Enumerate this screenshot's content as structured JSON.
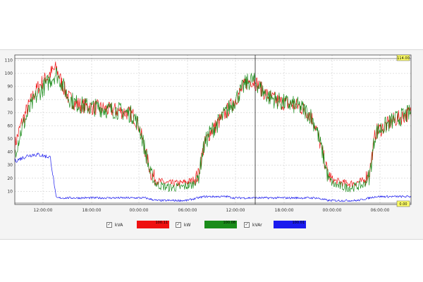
{
  "chart_data": {
    "type": "line",
    "title": "",
    "xlabel": "",
    "ylabel": "",
    "ylim": [
      0,
      114
    ],
    "y_ticks": [
      10,
      20,
      30,
      40,
      50,
      60,
      70,
      80,
      90,
      100,
      110
    ],
    "x_ticks": [
      "12:00:00",
      "18:00:00",
      "00:00:00",
      "06:00:00",
      "12:00:00",
      "18:00:00",
      "00:00:00",
      "06:00:00"
    ],
    "grid": true,
    "cursor_readout_top": "114.00",
    "cursor_readout_bottom": "0.00",
    "series": [
      {
        "name": "kVA",
        "color": "#ee1111",
        "swatch_value": "100.11",
        "values": [
          45,
          60,
          72,
          82,
          90,
          95,
          100,
          104,
          92,
          82,
          78,
          76,
          75,
          74,
          74,
          73,
          72,
          72,
          71,
          70,
          68,
          60,
          42,
          24,
          18,
          17,
          16,
          16,
          16,
          17,
          18,
          22,
          45,
          55,
          60,
          66,
          72,
          78,
          85,
          92,
          95,
          92,
          86,
          82,
          80,
          78,
          77,
          76,
          75,
          72,
          68,
          58,
          40,
          22,
          18,
          17,
          16,
          16,
          17,
          18,
          25,
          55,
          58,
          61,
          64,
          66,
          68,
          70
        ]
      },
      {
        "name": "kW",
        "color": "#1a8c1a",
        "swatch_value": "100.08",
        "values": [
          40,
          55,
          67,
          77,
          85,
          90,
          95,
          100,
          92,
          82,
          78,
          76,
          75,
          74,
          74,
          73,
          72,
          72,
          71,
          70,
          68,
          60,
          42,
          22,
          15,
          14,
          13,
          13,
          13,
          14,
          15,
          20,
          45,
          55,
          60,
          66,
          72,
          78,
          85,
          92,
          95,
          92,
          86,
          82,
          80,
          78,
          77,
          76,
          75,
          72,
          68,
          58,
          40,
          20,
          15,
          14,
          13,
          13,
          14,
          15,
          22,
          55,
          58,
          61,
          64,
          66,
          68,
          70
        ]
      },
      {
        "name": "kVAr",
        "color": "#1a1aee",
        "swatch_value": "100.01",
        "values": [
          33,
          35,
          37,
          38,
          38,
          37,
          36,
          5,
          5,
          5,
          5,
          5,
          5,
          5,
          5,
          5,
          5,
          5,
          5,
          5,
          5,
          5,
          5,
          4,
          3,
          3,
          3,
          3,
          3,
          3,
          4,
          5,
          6,
          6,
          6,
          6,
          6,
          5,
          5,
          5,
          5,
          5,
          5,
          5,
          5,
          5,
          5,
          5,
          5,
          5,
          5,
          5,
          4,
          3,
          3,
          3,
          3,
          3,
          3,
          4,
          5,
          6,
          6,
          6,
          6,
          6,
          6,
          6
        ]
      }
    ]
  },
  "legend": {
    "kva_check": "✓",
    "kw_check": "✓",
    "kvar_check": "✓"
  }
}
